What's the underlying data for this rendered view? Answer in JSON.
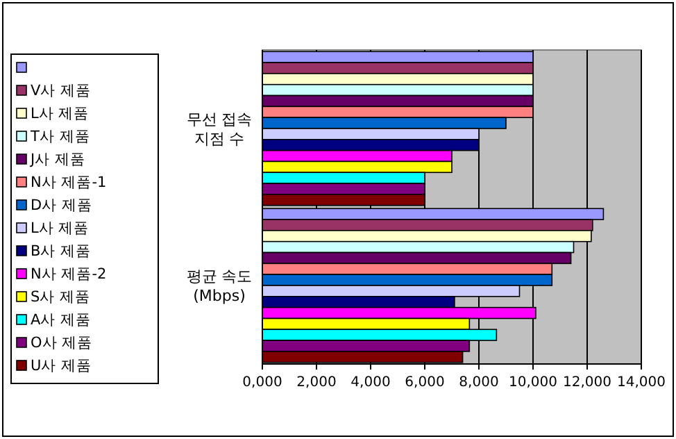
{
  "chart_data": {
    "type": "bar",
    "orientation": "horizontal",
    "categories": [
      "무선 접속\n지점 수",
      "평균 속도\n(Mbps)"
    ],
    "xlim": [
      0,
      14000
    ],
    "xticks": [
      {
        "value": 0,
        "label": "0,000"
      },
      {
        "value": 2000,
        "label": "2,000"
      },
      {
        "value": 4000,
        "label": "4,000"
      },
      {
        "value": 6000,
        "label": "6,000"
      },
      {
        "value": 8000,
        "label": "8,000"
      },
      {
        "value": 10000,
        "label": "10,000"
      },
      {
        "value": 12000,
        "label": "12,000"
      },
      {
        "value": 14000,
        "label": "14,000"
      }
    ],
    "grid": "x",
    "legend": "left",
    "series": [
      {
        "color": "#9999ff",
        "values": [
          10000,
          12600
        ]
      },
      {
        "name": "V사 제품",
        "color": "#993366",
        "values": [
          10000,
          12200
        ]
      },
      {
        "name": "L사 제품",
        "color": "#ffffcc",
        "values": [
          10000,
          12150
        ]
      },
      {
        "name": "T사 제품",
        "color": "#ccffff",
        "values": [
          10000,
          11500
        ]
      },
      {
        "name": "J사 제품",
        "color": "#660066",
        "values": [
          10000,
          11400
        ]
      },
      {
        "name": "N사 제품-1",
        "color": "#ff8080",
        "values": [
          10000,
          10700
        ]
      },
      {
        "name": "D사 제품",
        "color": "#0066cc",
        "values": [
          9000,
          10700
        ]
      },
      {
        "name": "L사 제품",
        "color": "#ccccff",
        "values": [
          8000,
          9500
        ]
      },
      {
        "name": "B사 제품",
        "color": "#000080",
        "values": [
          8000,
          7100
        ]
      },
      {
        "name": "N사 제품-2",
        "color": "#ff00ff",
        "values": [
          7000,
          10100
        ]
      },
      {
        "name": "S사 제품",
        "color": "#ffff00",
        "values": [
          7000,
          7650
        ]
      },
      {
        "name": "A사 제품",
        "color": "#00ffff",
        "values": [
          6000,
          8650
        ]
      },
      {
        "name": "O사 제품",
        "color": "#800080",
        "values": [
          6000,
          7650
        ]
      },
      {
        "name": "U사 제품",
        "color": "#800000",
        "values": [
          6000,
          7400
        ]
      }
    ]
  }
}
